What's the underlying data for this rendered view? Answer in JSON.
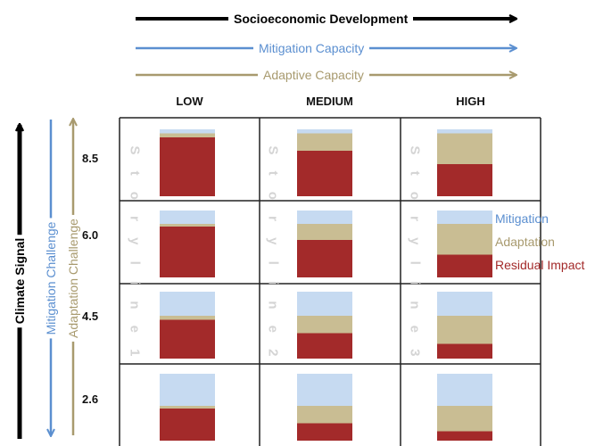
{
  "top_arrows": {
    "socioeconomic": {
      "label": "Socioeconomic Development",
      "color": "#000000"
    },
    "mitigation_capacity": {
      "label": "Mitigation Capacity",
      "color": "#5b8fd0"
    },
    "adaptive_capacity": {
      "label": "Adaptive Capacity",
      "color": "#a89a6e"
    }
  },
  "columns": [
    "LOW",
    "MEDIUM",
    "HIGH"
  ],
  "rows": [
    "8.5",
    "6.0",
    "4.5",
    "2.6"
  ],
  "side_arrows": {
    "climate_signal": {
      "label": "Climate Signal",
      "color": "#000000"
    },
    "mitigation_challenge": {
      "label": "Mitigation Challenge",
      "color": "#5b8fd0"
    },
    "adaptation_challenge": {
      "label": "Adaptation Challenge",
      "color": "#a89a6e"
    }
  },
  "storylines": [
    "S t o r y l i n e 1",
    "S t o r y l i n e 2",
    "S t o r y l i n e 3"
  ],
  "legend": [
    {
      "label": "Mitigation",
      "color": "#5b8fd0"
    },
    {
      "label": "Adaptation",
      "color": "#a89a6e"
    },
    {
      "label": "Residual Impact",
      "color": "#a32a2a"
    }
  ],
  "colors": {
    "mitigation": "#c6daf1",
    "adaptation": "#c9bd93",
    "residual": "#a32a2a",
    "grid": "#222222"
  },
  "chart_data": {
    "type": "bar",
    "stacking": "stacked-to-full",
    "columns": [
      "LOW",
      "MEDIUM",
      "HIGH"
    ],
    "rows": [
      "8.5",
      "6.0",
      "4.5",
      "2.6"
    ],
    "components": [
      "Mitigation",
      "Adaptation",
      "Residual Impact"
    ],
    "cells": [
      [
        {
          "mitigation": 0.06,
          "adaptation": 0.06,
          "residual": 0.88
        },
        {
          "mitigation": 0.06,
          "adaptation": 0.26,
          "residual": 0.68
        },
        {
          "mitigation": 0.06,
          "adaptation": 0.46,
          "residual": 0.48
        }
      ],
      [
        {
          "mitigation": 0.2,
          "adaptation": 0.04,
          "residual": 0.76
        },
        {
          "mitigation": 0.2,
          "adaptation": 0.24,
          "residual": 0.56
        },
        {
          "mitigation": 0.2,
          "adaptation": 0.46,
          "residual": 0.34
        }
      ],
      [
        {
          "mitigation": 0.36,
          "adaptation": 0.06,
          "residual": 0.58
        },
        {
          "mitigation": 0.36,
          "adaptation": 0.26,
          "residual": 0.38
        },
        {
          "mitigation": 0.36,
          "adaptation": 0.42,
          "residual": 0.22
        }
      ],
      [
        {
          "mitigation": 0.48,
          "adaptation": 0.04,
          "residual": 0.48
        },
        {
          "mitigation": 0.48,
          "adaptation": 0.26,
          "residual": 0.26
        },
        {
          "mitigation": 0.48,
          "adaptation": 0.38,
          "residual": 0.14
        }
      ]
    ]
  }
}
